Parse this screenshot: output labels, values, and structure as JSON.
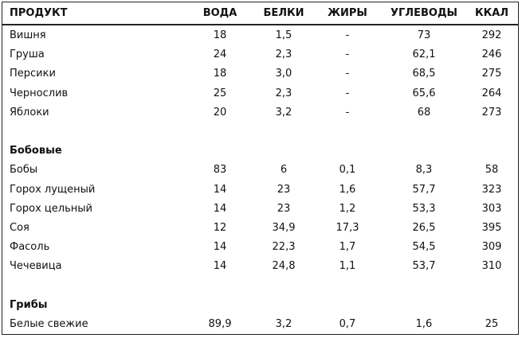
{
  "table": {
    "columns": [
      "ПРОДУКТ",
      "ВОДА",
      "БЕЛКИ",
      "ЖИРЫ",
      "УГЛЕВОДЫ",
      "ККАЛ"
    ],
    "sections": [
      {
        "rows": [
          [
            "Вишня",
            "18",
            "1,5",
            "-",
            "73",
            "292"
          ],
          [
            "Груша",
            "24",
            "2,3",
            "-",
            "62,1",
            "246"
          ],
          [
            "Персики",
            "18",
            "3,0",
            "-",
            "68,5",
            "275"
          ],
          [
            "Чернослив",
            "25",
            "2,3",
            "-",
            "65,6",
            "264"
          ],
          [
            "Яблоки",
            "20",
            "3,2",
            "-",
            "68",
            "273"
          ]
        ]
      },
      {
        "title": "Бобовые",
        "rows": [
          [
            "Бобы",
            "83",
            "6",
            "0,1",
            "8,3",
            "58"
          ],
          [
            "Горох лущеный",
            "14",
            "23",
            "1,6",
            "57,7",
            "323"
          ],
          [
            "Горох цельный",
            "14",
            "23",
            "1,2",
            "53,3",
            "303"
          ],
          [
            "Соя",
            "12",
            "34,9",
            "17,3",
            "26,5",
            "395"
          ],
          [
            "Фасоль",
            "14",
            "22,3",
            "1,7",
            "54,5",
            "309"
          ],
          [
            "Чечевица",
            "14",
            "24,8",
            "1,1",
            "53,7",
            "310"
          ]
        ]
      },
      {
        "title": "Грибы",
        "rows": [
          [
            "Белые свежие",
            "89,9",
            "3,2",
            "0,7",
            "1,6",
            "25"
          ]
        ]
      }
    ]
  }
}
